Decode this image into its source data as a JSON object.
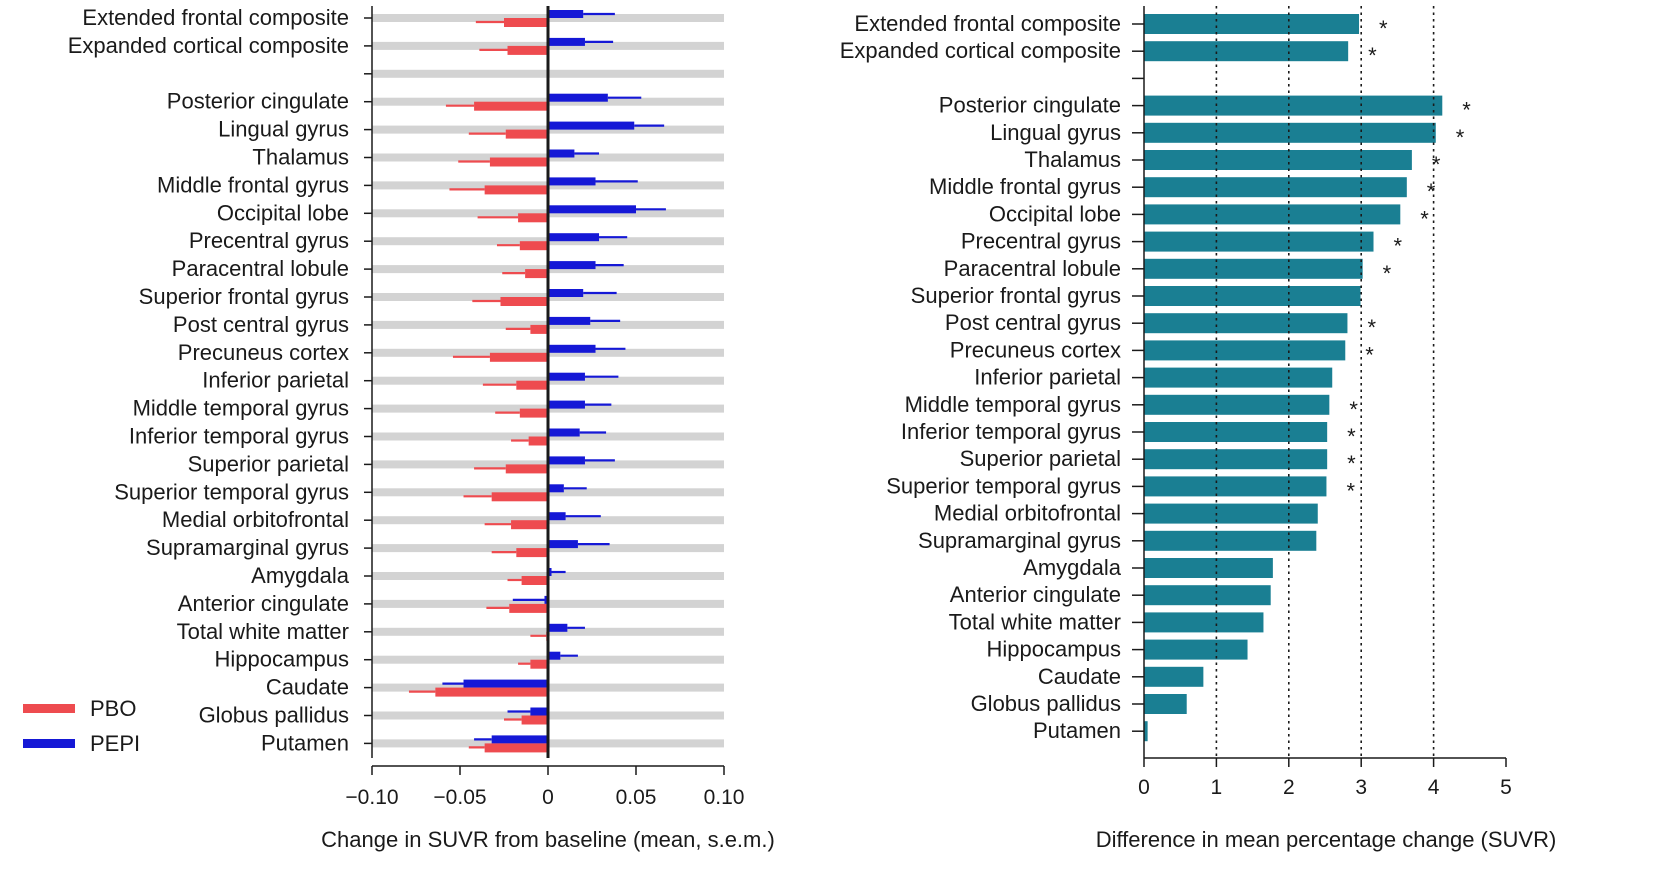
{
  "colors": {
    "pbo": "#ee4b4f",
    "pepi": "#1518d6",
    "teal": "#1a7f93",
    "track": "#d3d3d3",
    "axis": "#1a1a1a"
  },
  "chart_data": [
    {
      "type": "bar",
      "orientation": "horizontal",
      "panel": "left",
      "xlabel": "Change in SUVR from baseline (mean, s.e.m.)",
      "xlim": [
        -0.1,
        0.1
      ],
      "xticks": [
        -0.1,
        -0.05,
        0,
        0.05,
        0.1
      ],
      "xtick_labels": [
        "−0.10",
        "−0.05",
        "0",
        "0.05",
        "0.10"
      ],
      "legend": [
        {
          "name": "PBO",
          "color": "#ee4b4f"
        },
        {
          "name": "PEPI",
          "color": "#1518d6"
        }
      ],
      "categories": [
        "Extended frontal composite",
        "Expanded cortical composite",
        "",
        "Posterior cingulate",
        "Lingual gyrus",
        "Thalamus",
        "Middle frontal gyrus",
        "Occipital lobe",
        "Precentral gyrus",
        "Paracentral lobule",
        "Superior frontal gyrus",
        "Post central gyrus",
        "Precuneus cortex",
        "Inferior parietal",
        "Middle temporal gyrus",
        "Inferior temporal gyrus",
        "Superior parietal",
        "Superior temporal gyrus",
        "Medial orbitofrontal",
        "Supramarginal gyrus",
        "Amygdala",
        "Anterior cingulate",
        "Total white matter",
        "Hippocampus",
        "Caudate",
        "Globus pallidus",
        "Putamen"
      ],
      "series": [
        {
          "name": "PEPI",
          "values": [
            0.02,
            0.021,
            null,
            0.034,
            0.049,
            0.015,
            0.027,
            0.05,
            0.029,
            0.027,
            0.02,
            0.024,
            0.027,
            0.021,
            0.021,
            0.018,
            0.021,
            0.009,
            0.01,
            0.017,
            0.002,
            -0.002,
            0.011,
            0.007,
            -0.048,
            -0.01,
            -0.032
          ],
          "error": [
            0.018,
            0.016,
            null,
            0.019,
            0.017,
            0.014,
            0.024,
            0.017,
            0.016,
            0.016,
            0.019,
            0.017,
            0.017,
            0.019,
            0.015,
            0.015,
            0.017,
            0.013,
            0.02,
            0.018,
            0.008,
            0.018,
            0.01,
            0.01,
            0.012,
            0.013,
            0.01
          ]
        },
        {
          "name": "PBO",
          "values": [
            -0.025,
            -0.023,
            null,
            -0.042,
            -0.024,
            -0.033,
            -0.036,
            -0.017,
            -0.016,
            -0.013,
            -0.027,
            -0.01,
            -0.033,
            -0.018,
            -0.016,
            -0.011,
            -0.024,
            -0.032,
            -0.021,
            -0.018,
            -0.015,
            -0.022,
            -0.001,
            -0.01,
            -0.064,
            -0.015,
            -0.036
          ],
          "error": [
            0.016,
            0.016,
            null,
            0.016,
            0.021,
            0.018,
            0.02,
            0.023,
            0.013,
            0.013,
            0.016,
            0.014,
            0.021,
            0.019,
            0.014,
            0.01,
            0.018,
            0.016,
            0.015,
            0.014,
            0.008,
            0.013,
            0.009,
            0.007,
            0.015,
            0.01,
            0.009
          ]
        }
      ]
    },
    {
      "type": "bar",
      "orientation": "horizontal",
      "panel": "right",
      "xlabel": "Difference in mean percentage change (SUVR)",
      "xlim": [
        0,
        5
      ],
      "xticks": [
        0,
        1,
        2,
        3,
        4,
        5
      ],
      "xtick_labels": [
        "0",
        "1",
        "2",
        "3",
        "4",
        "5"
      ],
      "reference_lines": [
        1,
        2,
        3,
        4
      ],
      "categories": [
        "Extended frontal composite",
        "Expanded cortical composite",
        "",
        "Posterior cingulate",
        "Lingual gyrus",
        "Thalamus",
        "Middle frontal gyrus",
        "Occipital lobe",
        "Precentral gyrus",
        "Paracentral lobule",
        "Superior frontal gyrus",
        "Post central gyrus",
        "Precuneus cortex",
        "Inferior parietal",
        "Middle temporal gyrus",
        "Inferior temporal gyrus",
        "Superior parietal",
        "Superior temporal gyrus",
        "Medial orbitofrontal",
        "Supramarginal gyrus",
        "Amygdala",
        "Anterior cingulate",
        "Total white matter",
        "Hippocampus",
        "Caudate",
        "Globus pallidus",
        "Putamen"
      ],
      "values": [
        2.97,
        2.82,
        null,
        4.12,
        4.03,
        3.7,
        3.63,
        3.54,
        3.17,
        3.02,
        2.99,
        2.81,
        2.78,
        2.6,
        2.56,
        2.53,
        2.53,
        2.52,
        2.4,
        2.38,
        1.78,
        1.75,
        1.65,
        1.43,
        0.82,
        0.59,
        0.05
      ],
      "significant": [
        true,
        true,
        false,
        true,
        true,
        true,
        true,
        true,
        true,
        true,
        false,
        true,
        true,
        false,
        true,
        true,
        true,
        true,
        false,
        false,
        false,
        false,
        false,
        false,
        false,
        false,
        false
      ],
      "significance_marker": "*"
    }
  ]
}
